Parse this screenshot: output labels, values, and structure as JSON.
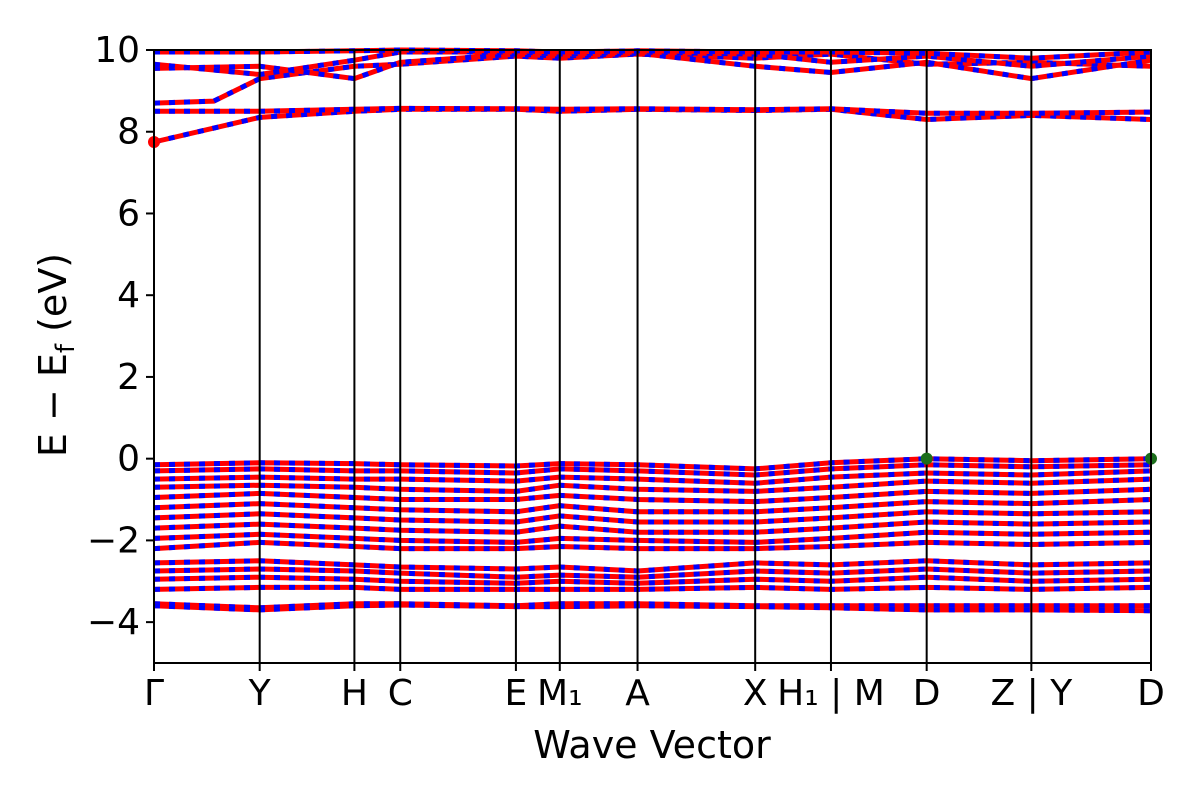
{
  "chart_data": {
    "type": "line",
    "xlabel": "Wave Vector",
    "ylabel": "E − E_f (eV)",
    "ylabel_main": "E − E",
    "ylabel_sub": "f",
    "ylabel_unit": " (eV)",
    "ylim": [
      -5,
      10
    ],
    "yticks": [
      -4,
      -2,
      0,
      2,
      4,
      6,
      8,
      10
    ],
    "ytick_labels": [
      "−4",
      "−2",
      "0",
      "2",
      "4",
      "6",
      "8",
      "10"
    ],
    "xlim": [
      0,
      1
    ],
    "kpoints": [
      {
        "label": "Γ",
        "x": 0.0
      },
      {
        "label": "Y",
        "x": 0.106
      },
      {
        "label": "H",
        "x": 0.201
      },
      {
        "label": "C",
        "x": 0.247
      },
      {
        "label": "E",
        "x": 0.363
      },
      {
        "label": "M₁",
        "x": 0.407
      },
      {
        "label": "A",
        "x": 0.485
      },
      {
        "label": "X",
        "x": 0.603
      },
      {
        "label": "H₁ | M",
        "x": 0.679
      },
      {
        "label": "D",
        "x": 0.775
      },
      {
        "label": "Z | Y",
        "x": 0.88
      },
      {
        "label": "D",
        "x": 1.0
      }
    ],
    "colors": {
      "band_primary": "#ff0000",
      "band_secondary": "#0000ff",
      "vbm_marker": "#1b6d1b",
      "cbm_marker": "#ff0000"
    },
    "markers": [
      {
        "type": "cbm",
        "x": 0.0,
        "y": 7.75
      },
      {
        "type": "vbm",
        "x": 0.775,
        "y": 0.0
      },
      {
        "type": "vbm",
        "x": 1.0,
        "y": 0.0
      }
    ],
    "conduction_bands": [
      [
        [
          0,
          7.75
        ],
        [
          0.106,
          8.35
        ],
        [
          0.201,
          8.5
        ],
        [
          0.247,
          8.55
        ],
        [
          0.363,
          8.55
        ],
        [
          0.407,
          8.5
        ],
        [
          0.485,
          8.55
        ],
        [
          0.603,
          8.52
        ],
        [
          0.679,
          8.55
        ],
        [
          0.775,
          8.3
        ],
        [
          0.88,
          8.4
        ],
        [
          1.0,
          8.3
        ]
      ],
      [
        [
          0,
          8.5
        ],
        [
          0.106,
          8.5
        ],
        [
          0.201,
          8.55
        ],
        [
          0.247,
          8.57
        ],
        [
          0.363,
          8.56
        ],
        [
          0.407,
          8.55
        ],
        [
          0.485,
          8.56
        ],
        [
          0.603,
          8.54
        ],
        [
          0.679,
          8.56
        ],
        [
          0.775,
          8.45
        ],
        [
          0.88,
          8.45
        ],
        [
          1.0,
          8.48
        ]
      ],
      [
        [
          0,
          8.7
        ],
        [
          0.06,
          8.75
        ],
        [
          0.106,
          9.3
        ],
        [
          0.201,
          9.6
        ],
        [
          0.247,
          9.65
        ],
        [
          0.363,
          9.85
        ],
        [
          0.407,
          9.8
        ],
        [
          0.485,
          9.9
        ],
        [
          0.603,
          9.8
        ],
        [
          0.679,
          9.9
        ],
        [
          0.775,
          9.65
        ],
        [
          0.88,
          9.7
        ],
        [
          1.0,
          9.6
        ]
      ],
      [
        [
          0,
          9.55
        ],
        [
          0.106,
          9.6
        ],
        [
          0.201,
          9.3
        ],
        [
          0.247,
          9.7
        ],
        [
          0.363,
          9.9
        ],
        [
          0.407,
          9.85
        ],
        [
          0.485,
          9.92
        ],
        [
          0.603,
          9.6
        ],
        [
          0.679,
          9.45
        ],
        [
          0.775,
          9.7
        ],
        [
          0.88,
          9.3
        ],
        [
          1.0,
          9.75
        ]
      ],
      [
        [
          0,
          9.65
        ],
        [
          0.106,
          9.4
        ],
        [
          0.201,
          9.75
        ],
        [
          0.247,
          9.95
        ],
        [
          0.363,
          9.95
        ],
        [
          0.407,
          9.9
        ],
        [
          0.485,
          9.95
        ],
        [
          0.603,
          9.9
        ],
        [
          0.679,
          9.7
        ],
        [
          0.775,
          9.85
        ],
        [
          0.88,
          9.6
        ],
        [
          1.0,
          9.85
        ]
      ],
      [
        [
          0,
          9.95
        ],
        [
          0.106,
          9.95
        ],
        [
          0.201,
          9.98
        ],
        [
          0.247,
          10.0
        ],
        [
          0.363,
          9.98
        ],
        [
          0.407,
          9.95
        ],
        [
          0.485,
          9.98
        ],
        [
          0.603,
          9.95
        ],
        [
          0.679,
          9.95
        ],
        [
          0.775,
          9.92
        ],
        [
          0.88,
          9.8
        ],
        [
          1.0,
          9.95
        ]
      ]
    ],
    "valence_bands": [
      [
        [
          0,
          -0.15
        ],
        [
          0.106,
          -0.1
        ],
        [
          0.201,
          -0.12
        ],
        [
          0.247,
          -0.15
        ],
        [
          0.363,
          -0.18
        ],
        [
          0.407,
          -0.12
        ],
        [
          0.485,
          -0.15
        ],
        [
          0.603,
          -0.25
        ],
        [
          0.679,
          -0.1
        ],
        [
          0.775,
          0.0
        ],
        [
          0.88,
          -0.05
        ],
        [
          1.0,
          0.0
        ]
      ],
      [
        [
          0,
          -0.3
        ],
        [
          0.106,
          -0.25
        ],
        [
          0.201,
          -0.3
        ],
        [
          0.247,
          -0.3
        ],
        [
          0.363,
          -0.35
        ],
        [
          0.407,
          -0.25
        ],
        [
          0.485,
          -0.3
        ],
        [
          0.603,
          -0.4
        ],
        [
          0.679,
          -0.25
        ],
        [
          0.775,
          -0.15
        ],
        [
          0.88,
          -0.2
        ],
        [
          1.0,
          -0.15
        ]
      ],
      [
        [
          0,
          -0.5
        ],
        [
          0.106,
          -0.45
        ],
        [
          0.201,
          -0.5
        ],
        [
          0.247,
          -0.5
        ],
        [
          0.363,
          -0.55
        ],
        [
          0.407,
          -0.45
        ],
        [
          0.485,
          -0.5
        ],
        [
          0.603,
          -0.6
        ],
        [
          0.679,
          -0.45
        ],
        [
          0.775,
          -0.35
        ],
        [
          0.88,
          -0.4
        ],
        [
          1.0,
          -0.3
        ]
      ],
      [
        [
          0,
          -0.7
        ],
        [
          0.106,
          -0.65
        ],
        [
          0.201,
          -0.7
        ],
        [
          0.247,
          -0.75
        ],
        [
          0.363,
          -0.8
        ],
        [
          0.407,
          -0.65
        ],
        [
          0.485,
          -0.75
        ],
        [
          0.603,
          -0.8
        ],
        [
          0.679,
          -0.7
        ],
        [
          0.775,
          -0.55
        ],
        [
          0.88,
          -0.6
        ],
        [
          1.0,
          -0.5
        ]
      ],
      [
        [
          0,
          -0.95
        ],
        [
          0.106,
          -0.85
        ],
        [
          0.201,
          -0.95
        ],
        [
          0.247,
          -1.0
        ],
        [
          0.363,
          -1.0
        ],
        [
          0.407,
          -0.9
        ],
        [
          0.485,
          -1.0
        ],
        [
          0.603,
          -1.05
        ],
        [
          0.679,
          -0.95
        ],
        [
          0.775,
          -0.8
        ],
        [
          0.88,
          -0.85
        ],
        [
          1.0,
          -0.75
        ]
      ],
      [
        [
          0,
          -1.2
        ],
        [
          0.106,
          -1.1
        ],
        [
          0.201,
          -1.2
        ],
        [
          0.247,
          -1.25
        ],
        [
          0.363,
          -1.3
        ],
        [
          0.407,
          -1.15
        ],
        [
          0.485,
          -1.3
        ],
        [
          0.603,
          -1.3
        ],
        [
          0.679,
          -1.2
        ],
        [
          0.775,
          -1.05
        ],
        [
          0.88,
          -1.1
        ],
        [
          1.0,
          -1.0
        ]
      ],
      [
        [
          0,
          -1.45
        ],
        [
          0.106,
          -1.35
        ],
        [
          0.201,
          -1.45
        ],
        [
          0.247,
          -1.5
        ],
        [
          0.363,
          -1.55
        ],
        [
          0.407,
          -1.4
        ],
        [
          0.485,
          -1.55
        ],
        [
          0.603,
          -1.55
        ],
        [
          0.679,
          -1.45
        ],
        [
          0.775,
          -1.3
        ],
        [
          0.88,
          -1.35
        ],
        [
          1.0,
          -1.3
        ]
      ],
      [
        [
          0,
          -1.7
        ],
        [
          0.106,
          -1.6
        ],
        [
          0.201,
          -1.7
        ],
        [
          0.247,
          -1.75
        ],
        [
          0.363,
          -1.8
        ],
        [
          0.407,
          -1.65
        ],
        [
          0.485,
          -1.8
        ],
        [
          0.603,
          -1.8
        ],
        [
          0.679,
          -1.7
        ],
        [
          0.775,
          -1.55
        ],
        [
          0.88,
          -1.6
        ],
        [
          1.0,
          -1.55
        ]
      ],
      [
        [
          0,
          -1.95
        ],
        [
          0.106,
          -1.85
        ],
        [
          0.201,
          -1.95
        ],
        [
          0.247,
          -2.0
        ],
        [
          0.363,
          -2.05
        ],
        [
          0.407,
          -1.95
        ],
        [
          0.485,
          -2.0
        ],
        [
          0.603,
          -2.05
        ],
        [
          0.679,
          -1.95
        ],
        [
          0.775,
          -1.8
        ],
        [
          0.88,
          -1.85
        ],
        [
          1.0,
          -1.8
        ]
      ],
      [
        [
          0,
          -2.2
        ],
        [
          0.106,
          -2.05
        ],
        [
          0.201,
          -2.15
        ],
        [
          0.247,
          -2.2
        ],
        [
          0.363,
          -2.2
        ],
        [
          0.407,
          -2.15
        ],
        [
          0.485,
          -2.2
        ],
        [
          0.603,
          -2.2
        ],
        [
          0.679,
          -2.15
        ],
        [
          0.775,
          -2.05
        ],
        [
          0.88,
          -2.1
        ],
        [
          1.0,
          -2.05
        ]
      ],
      [
        [
          0,
          -2.55
        ],
        [
          0.106,
          -2.5
        ],
        [
          0.201,
          -2.6
        ],
        [
          0.247,
          -2.65
        ],
        [
          0.363,
          -2.7
        ],
        [
          0.407,
          -2.65
        ],
        [
          0.485,
          -2.75
        ],
        [
          0.603,
          -2.55
        ],
        [
          0.679,
          -2.6
        ],
        [
          0.775,
          -2.5
        ],
        [
          0.88,
          -2.6
        ],
        [
          1.0,
          -2.55
        ]
      ],
      [
        [
          0,
          -2.75
        ],
        [
          0.106,
          -2.7
        ],
        [
          0.201,
          -2.75
        ],
        [
          0.247,
          -2.8
        ],
        [
          0.363,
          -2.9
        ],
        [
          0.407,
          -2.85
        ],
        [
          0.485,
          -2.9
        ],
        [
          0.603,
          -2.75
        ],
        [
          0.679,
          -2.8
        ],
        [
          0.775,
          -2.7
        ],
        [
          0.88,
          -2.8
        ],
        [
          1.0,
          -2.75
        ]
      ],
      [
        [
          0,
          -2.95
        ],
        [
          0.106,
          -2.9
        ],
        [
          0.201,
          -2.95
        ],
        [
          0.247,
          -3.0
        ],
        [
          0.363,
          -3.05
        ],
        [
          0.407,
          -3.0
        ],
        [
          0.485,
          -3.05
        ],
        [
          0.603,
          -2.95
        ],
        [
          0.679,
          -3.0
        ],
        [
          0.775,
          -2.9
        ],
        [
          0.88,
          -3.0
        ],
        [
          1.0,
          -2.95
        ]
      ],
      [
        [
          0,
          -3.2
        ],
        [
          0.106,
          -3.15
        ],
        [
          0.201,
          -3.15
        ],
        [
          0.247,
          -3.2
        ],
        [
          0.363,
          -3.2
        ],
        [
          0.407,
          -3.2
        ],
        [
          0.485,
          -3.2
        ],
        [
          0.603,
          -3.15
        ],
        [
          0.679,
          -3.2
        ],
        [
          0.775,
          -3.15
        ],
        [
          0.88,
          -3.2
        ],
        [
          1.0,
          -3.15
        ]
      ],
      [
        [
          0,
          -3.55
        ],
        [
          0.106,
          -3.65
        ],
        [
          0.201,
          -3.55
        ],
        [
          0.247,
          -3.55
        ],
        [
          0.363,
          -3.6
        ],
        [
          0.407,
          -3.55
        ],
        [
          0.485,
          -3.55
        ],
        [
          0.603,
          -3.6
        ],
        [
          0.679,
          -3.6
        ],
        [
          0.775,
          -3.6
        ],
        [
          0.88,
          -3.6
        ],
        [
          1.0,
          -3.6
        ]
      ],
      [
        [
          0,
          -3.6
        ],
        [
          0.106,
          -3.7
        ],
        [
          0.201,
          -3.6
        ],
        [
          0.247,
          -3.58
        ],
        [
          0.363,
          -3.62
        ],
        [
          0.407,
          -3.62
        ],
        [
          0.485,
          -3.6
        ],
        [
          0.603,
          -3.62
        ],
        [
          0.679,
          -3.65
        ],
        [
          0.775,
          -3.7
        ],
        [
          0.88,
          -3.7
        ],
        [
          1.0,
          -3.72
        ]
      ]
    ]
  }
}
